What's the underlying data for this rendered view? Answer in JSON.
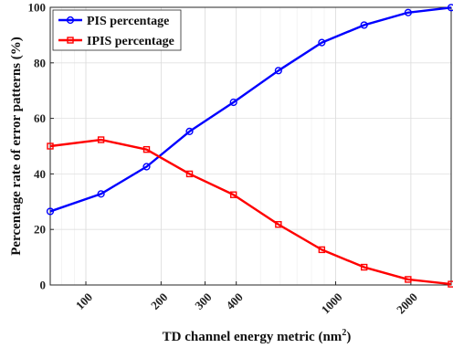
{
  "chart_data": {
    "type": "line",
    "xlabel": "TD channel energy metric (nm",
    "xlabel_sup": "2",
    "xlabel_close": ")",
    "ylabel": "Percentage rate of error patterns (%)",
    "xscale": "log",
    "xlim": [
      72,
      2900
    ],
    "ylim": [
      0,
      100
    ],
    "grid": true,
    "legend_position": "top-left",
    "x_ticks": [
      100,
      200,
      300,
      400,
      1000,
      2000
    ],
    "x_tick_labels": [
      "100",
      "200",
      "300",
      "400",
      "1000",
      "2000"
    ],
    "y_ticks": [
      0,
      20,
      40,
      60,
      80,
      100
    ],
    "y_tick_labels": [
      "0",
      "20",
      "40",
      "60",
      "80",
      "100"
    ],
    "x": [
      72,
      115,
      175,
      260,
      390,
      590,
      880,
      1300,
      1950,
      2900
    ],
    "series": [
      {
        "name": "PIS percentage",
        "color": "#0000ff",
        "marker": "circle",
        "values": [
          26.5,
          32.8,
          42.6,
          55.3,
          65.8,
          77.2,
          87.3,
          93.6,
          98.1,
          99.9
        ]
      },
      {
        "name": "IPIS percentage",
        "color": "#ff0000",
        "marker": "square",
        "values": [
          50.0,
          52.3,
          48.8,
          40.0,
          32.5,
          21.8,
          12.7,
          6.4,
          2.0,
          0.3
        ]
      }
    ]
  }
}
